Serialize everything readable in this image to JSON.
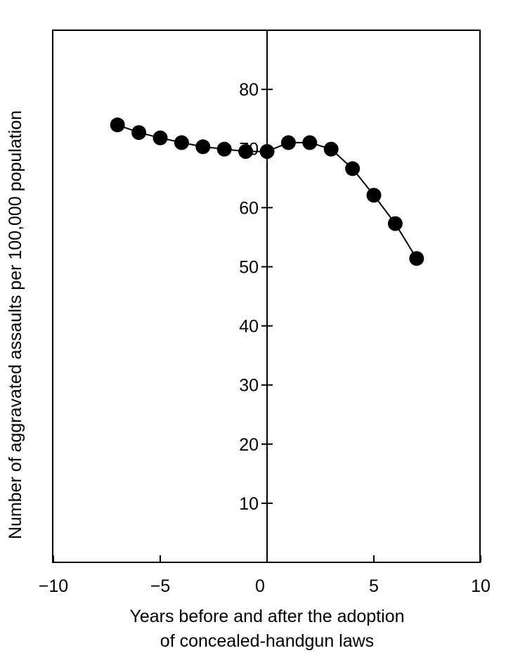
{
  "chart_data": {
    "type": "line",
    "xlabel_lines": [
      "Years before and after the adoption",
      "of concealed-handgun laws"
    ],
    "ylabel": "Number of aggravated assaults per 100,000 population",
    "xlim": [
      -10,
      10
    ],
    "ylim": [
      0,
      90
    ],
    "x_ticks": [
      -10,
      -5,
      0,
      5,
      10
    ],
    "x_tick_labels": [
      "−10",
      "−5",
      "0",
      "5",
      "10"
    ],
    "y_ticks": [
      10,
      20,
      30,
      40,
      50,
      60,
      70,
      80
    ],
    "y_tick_labels": [
      "10",
      "20",
      "30",
      "40",
      "50",
      "60",
      "70",
      "80"
    ],
    "grid": false,
    "series": [
      {
        "x": [
          -7,
          -6,
          -5,
          -4,
          -3,
          -2,
          -1,
          0,
          1,
          2,
          3,
          4,
          5,
          6,
          7
        ],
        "y": [
          74,
          72.7,
          71.8,
          71,
          70.3,
          69.9,
          69.5,
          69.5,
          71,
          71,
          69.9,
          66.6,
          62.1,
          57.3,
          51.4
        ]
      }
    ]
  }
}
